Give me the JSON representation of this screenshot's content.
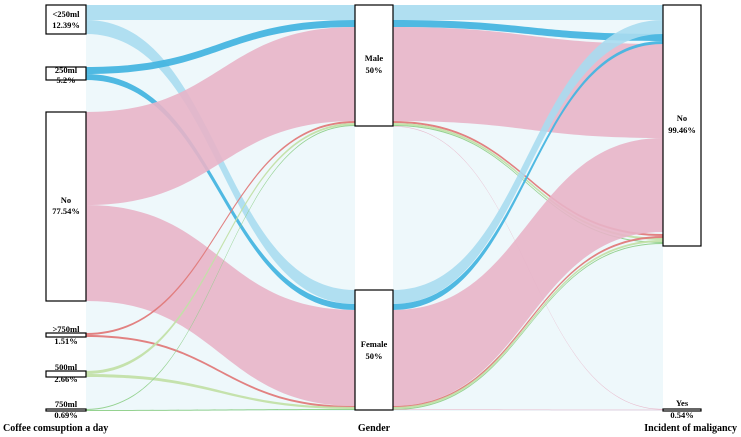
{
  "diagram": {
    "type": "alluvial",
    "axes": [
      {
        "id": "coffee",
        "label": "Coffee comsuption a day"
      },
      {
        "id": "gender",
        "label": "Gender"
      },
      {
        "id": "malignancy",
        "label": "Incident of maligancy"
      }
    ],
    "nodes": {
      "coffee": [
        {
          "id": "lt250",
          "line1": "<250ml",
          "line2": "12.39%"
        },
        {
          "id": "ml250",
          "line1": "250ml",
          "line2": "5.2%"
        },
        {
          "id": "no",
          "line1": "No",
          "line2": "77.54%"
        },
        {
          "id": "gt750",
          "line1": ">750ml",
          "line2": "1.51%"
        },
        {
          "id": "ml500",
          "line1": "500ml",
          "line2": "2.66%"
        },
        {
          "id": "ml750",
          "line1": "750ml",
          "line2": "0.69%"
        }
      ],
      "gender": [
        {
          "id": "male",
          "line1": "Male",
          "line2": "50%"
        },
        {
          "id": "female",
          "line1": "Female",
          "line2": "50%"
        }
      ],
      "malignancy": [
        {
          "id": "no",
          "line1": "No",
          "line2": "99.46%"
        },
        {
          "id": "yes",
          "line1": "Yes",
          "line2": "0.54%"
        }
      ]
    },
    "colors": {
      "no_coffee": "#e8b4c8",
      "lt250": "#a9dcf0",
      "ml250": "#46b5e0",
      "gt750": "#e07a7a",
      "ml500": "#c2e0a8",
      "ml750": "#8fd08a",
      "background_band": "#eef8fb"
    }
  }
}
